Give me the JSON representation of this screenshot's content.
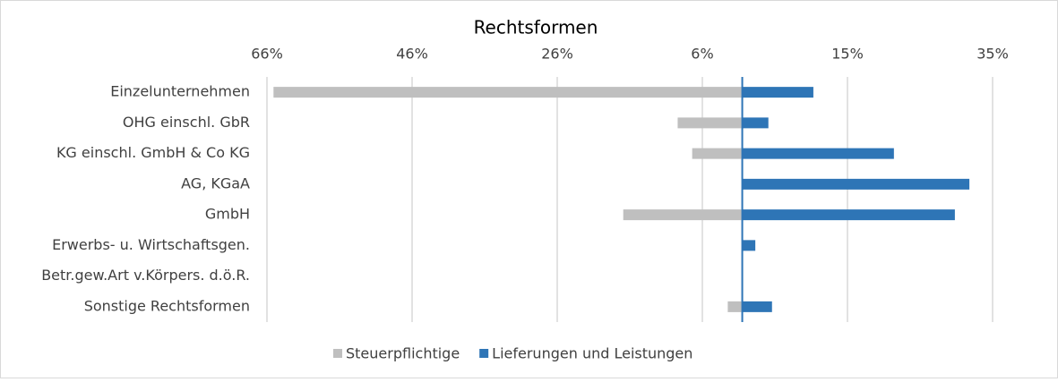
{
  "chart_data": {
    "type": "bar",
    "orientation": "horizontal",
    "title": "Rechtsformen",
    "categories": [
      "Einzelunternehmen",
      "OHG einschl. GbR",
      "KG einschl. GmbH & Co KG",
      "AG, KGaA",
      "GmbH",
      "Erwerbs- u. Wirtschaftsgen.",
      "Betr.gew.Art v.Körpers. d.ö.R.",
      "Sonstige Rechtsformen"
    ],
    "series": [
      {
        "name": "Steuerpflichtige",
        "color": "#bfbfbf",
        "values": [
          -64.6,
          -8.9,
          -6.9,
          0,
          -16.4,
          0,
          0,
          -2.0
        ]
      },
      {
        "name": "Lieferungen und Leistungen",
        "color": "#2e75b6",
        "values": [
          9.8,
          3.6,
          20.9,
          31.3,
          29.3,
          1.8,
          0,
          4.1
        ]
      }
    ],
    "xlim": [
      -65.5,
      34.5
    ],
    "xticks": [
      {
        "value": -65.5,
        "label": "66%"
      },
      {
        "value": -45.5,
        "label": "46%"
      },
      {
        "value": -25.5,
        "label": "26%"
      },
      {
        "value": -5.5,
        "label": "6%"
      },
      {
        "value": 14.5,
        "label": "15%"
      },
      {
        "value": 34.5,
        "label": "35%"
      }
    ],
    "grid": true,
    "legend": "bottom"
  }
}
